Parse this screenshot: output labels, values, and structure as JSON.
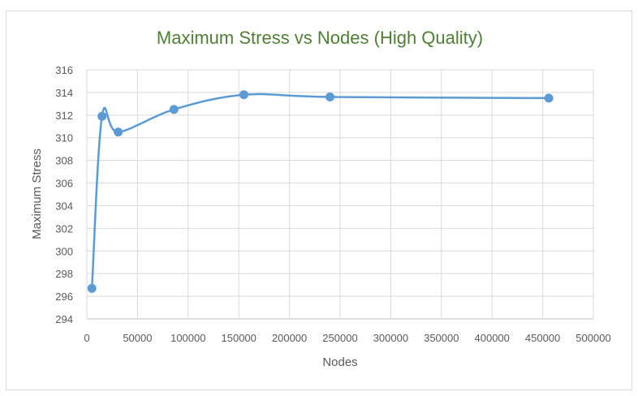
{
  "chart_data": {
    "type": "scatter",
    "title": "Maximum Stress vs Nodes (High Quality)",
    "xlabel": "Nodes",
    "ylabel": "Maximum Stress",
    "xlim": [
      0,
      500000
    ],
    "ylim": [
      294,
      316
    ],
    "x_ticks": [
      0,
      50000,
      100000,
      150000,
      200000,
      250000,
      300000,
      350000,
      400000,
      450000,
      500000
    ],
    "y_ticks": [
      294,
      296,
      298,
      300,
      302,
      304,
      306,
      308,
      310,
      312,
      314,
      316
    ],
    "grid": true,
    "smooth_line": true,
    "legend": "none",
    "series": [
      {
        "x": [
          5000,
          15000,
          31000,
          86000,
          155000,
          240000,
          456000
        ],
        "y": [
          296.7,
          311.9,
          310.5,
          312.5,
          313.8,
          313.6,
          313.5
        ]
      }
    ]
  },
  "colors": {
    "title": "#4f7f35",
    "series": "#5b9bd5",
    "grid": "#d9d9d9",
    "axis": "#bfbfbf",
    "text": "#595959"
  }
}
